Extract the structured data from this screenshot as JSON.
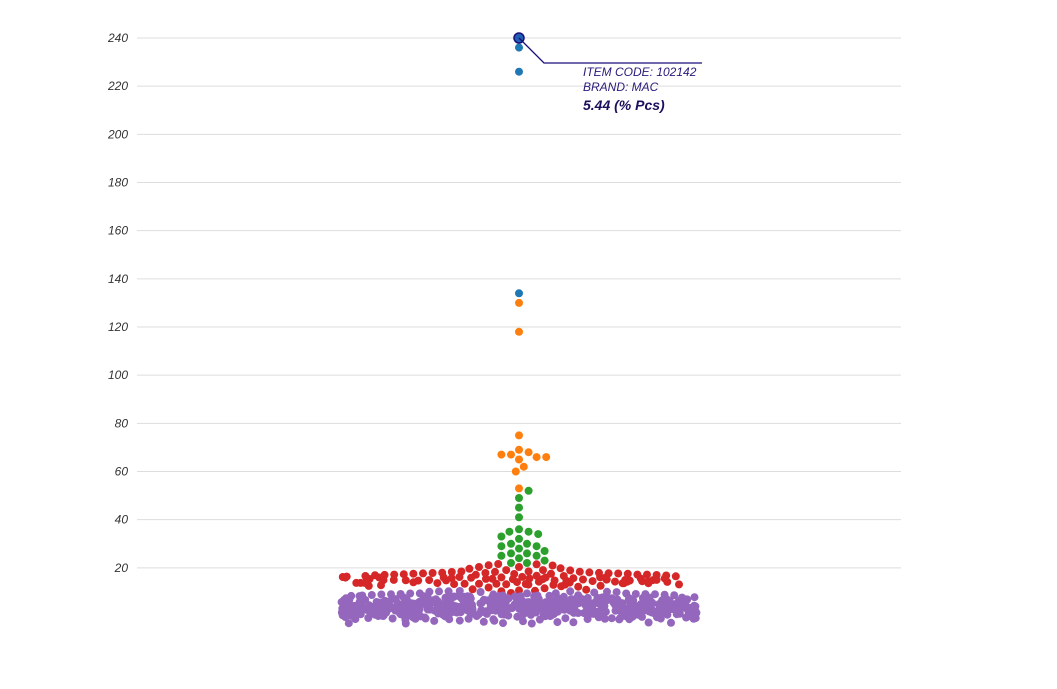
{
  "chart_data": {
    "type": "scatter",
    "subtype": "beeswarm",
    "title": "",
    "xlabel": "",
    "ylabel": "",
    "ylim": [
      0,
      240
    ],
    "yticks": [
      20,
      40,
      60,
      80,
      100,
      120,
      140,
      160,
      180,
      200,
      220,
      240
    ],
    "tick_labels": [
      "20",
      "40",
      "60",
      "80",
      "100",
      "120",
      "140",
      "160",
      "180",
      "200",
      "220",
      "240"
    ],
    "grid": true,
    "legend": "none",
    "series": [
      {
        "color": "#1f77b4",
        "values": [
          240,
          236,
          226,
          134
        ]
      },
      {
        "color": "#ff7f0e",
        "values": [
          130,
          118,
          75,
          69,
          68,
          67,
          67,
          66,
          66,
          65,
          62,
          60,
          53
        ]
      },
      {
        "color": "#2ca02c",
        "values": [
          52,
          49,
          45,
          41,
          36,
          35,
          35,
          34,
          33,
          32,
          30,
          30,
          29,
          29,
          28,
          27,
          26,
          26,
          25,
          25,
          24,
          23,
          22,
          22
        ]
      },
      {
        "color": "#d62728",
        "count": 120,
        "range": [
          8,
          23
        ]
      },
      {
        "color": "#9467bd",
        "count": 560,
        "range": [
          -5,
          12
        ]
      }
    ],
    "highlighted_point": {
      "value": 240,
      "color": "#1f5fb4"
    },
    "tooltip": {
      "line1": "ITEM CODE: 102142",
      "line2": "BRAND: MAC",
      "value_text": "5.44 (% Pcs)"
    }
  }
}
